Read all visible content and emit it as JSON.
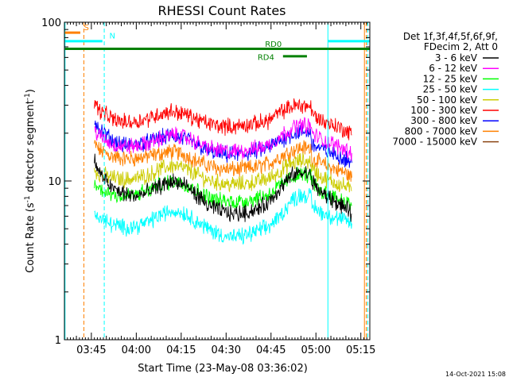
{
  "chart_data": {
    "type": "line",
    "title": "RHESSI Count Rates",
    "xlabel": "Start Time (23-May-08 03:36:02)",
    "ylabel": "Count Rate (s",
    "ylabel_exp1": "-1",
    "ylabel_mid": " detector segment",
    "ylabel_exp2": "-1",
    "ylabel_end": ")",
    "yscale": "log",
    "ylim": [
      1,
      100
    ],
    "xlim_minutes": [
      216,
      318
    ],
    "x_ticks": [
      {
        "label": "03:45",
        "minutes": 225
      },
      {
        "label": "04:00",
        "minutes": 240
      },
      {
        "label": "04:15",
        "minutes": 255
      },
      {
        "label": "04:30",
        "minutes": 270
      },
      {
        "label": "04:45",
        "minutes": 285
      },
      {
        "label": "05:00",
        "minutes": 300
      },
      {
        "label": "05:15",
        "minutes": 315
      }
    ],
    "y_ticks": [
      {
        "label": "1",
        "value": 1
      },
      {
        "label": "10",
        "value": 10
      },
      {
        "label": "100",
        "value": 100
      }
    ],
    "legend_header": [
      "Det 1f,3f,4f,5f,6f,9f,",
      "FDecim 2, Att 0"
    ],
    "legend_position": "right",
    "timestamp": "14-Oct-2021 15:08",
    "knot_minutes": [
      226,
      228,
      232,
      236,
      240,
      244,
      248,
      252,
      256,
      260,
      264,
      268,
      272,
      276,
      280,
      284,
      288,
      292,
      295,
      298.3,
      298.7,
      302,
      306,
      310,
      312
    ],
    "series": [
      {
        "name": "3 - 6 keV",
        "color": "#000000",
        "values": [
          13.5,
          11.0,
          9.0,
          8.3,
          8.0,
          8.5,
          9.3,
          10.0,
          9.5,
          8.2,
          7.0,
          6.5,
          6.2,
          6.3,
          6.6,
          7.3,
          9.0,
          10.8,
          11.3,
          11.0,
          10.0,
          8.3,
          7.5,
          6.7,
          6.2
        ]
      },
      {
        "name": "6 - 12 keV",
        "color": "#ff00ff",
        "values": [
          21.0,
          19.0,
          17.0,
          16.5,
          16.6,
          17.2,
          18.5,
          19.5,
          19.0,
          17.5,
          16.2,
          15.5,
          15.3,
          15.6,
          16.0,
          16.8,
          19.0,
          21.5,
          22.5,
          22.0,
          20.0,
          18.2,
          17.0,
          15.8,
          15.0
        ]
      },
      {
        "name": "12 - 25 keV",
        "color": "#00ff00",
        "values": [
          9.5,
          8.8,
          8.3,
          8.0,
          8.2,
          8.7,
          9.5,
          10.0,
          9.7,
          8.7,
          7.9,
          7.5,
          7.4,
          7.5,
          7.8,
          8.2,
          9.3,
          10.6,
          11.0,
          10.8,
          9.7,
          8.5,
          8.0,
          7.4,
          7.0
        ]
      },
      {
        "name": "25 - 50 keV",
        "color": "#00ffff",
        "values": [
          6.4,
          5.8,
          5.3,
          5.1,
          5.2,
          5.5,
          6.1,
          6.5,
          6.3,
          5.6,
          5.0,
          4.6,
          4.4,
          4.5,
          4.8,
          5.1,
          6.0,
          7.6,
          8.2,
          8.0,
          7.0,
          6.3,
          5.9,
          5.6,
          5.4
        ]
      },
      {
        "name": "50 - 100 keV",
        "color": "#cccc00",
        "values": [
          11.7,
          11.0,
          10.5,
          10.2,
          10.4,
          10.9,
          11.9,
          12.5,
          12.0,
          11.0,
          10.1,
          9.7,
          9.5,
          9.6,
          9.9,
          10.3,
          11.5,
          12.9,
          13.4,
          13.2,
          12.0,
          10.5,
          9.8,
          9.2,
          8.7
        ]
      },
      {
        "name": "100 - 300 keV",
        "color": "#ff0000",
        "values": [
          31.0,
          27.5,
          24.5,
          23.5,
          23.7,
          24.8,
          26.5,
          27.5,
          26.5,
          24.5,
          23.0,
          22.2,
          22.0,
          22.4,
          23.0,
          24.0,
          27.0,
          29.5,
          30.0,
          29.5,
          26.5,
          24.0,
          22.5,
          20.8,
          19.5
        ]
      },
      {
        "name": "300 - 800 keV",
        "color": "#0000ff",
        "values": [
          24.5,
          21.0,
          18.0,
          16.8,
          17.0,
          17.6,
          18.7,
          19.3,
          18.5,
          16.8,
          15.5,
          14.8,
          14.6,
          14.8,
          15.4,
          16.2,
          18.0,
          19.7,
          20.5,
          20.2,
          17.0,
          15.8,
          14.8,
          13.8,
          13.0
        ]
      },
      {
        "name": "800 - 7000 keV",
        "color": "#ff8000",
        "values": [
          17.0,
          15.5,
          14.3,
          13.8,
          13.9,
          14.3,
          14.9,
          15.3,
          14.7,
          13.4,
          12.5,
          12.0,
          11.8,
          11.9,
          12.2,
          12.8,
          14.2,
          15.5,
          16.2,
          16.0,
          13.8,
          12.8,
          12.0,
          11.2,
          10.5
        ]
      },
      {
        "name": "7000 - 15000 keV",
        "color": "#8b4513",
        "values": [],
        "display_range": []
      }
    ],
    "annotations": [
      {
        "label": "S",
        "color": "#ff8000",
        "y": 86,
        "x_from": 216.2,
        "x_to": 221.3,
        "text_x": 222.5,
        "text_y": 89
      },
      {
        "label": "N",
        "color": "#00ffff",
        "y": 76,
        "x_from": 216.2,
        "x_to": 228.7,
        "text_x": 231.0,
        "text_y": 79
      },
      {
        "label": "N",
        "color": "#00ffff",
        "y": 76,
        "x_from": 304.0,
        "x_to": 318.0
      },
      {
        "label": "RD0",
        "color": "#008000",
        "y": 68,
        "x_from": 216.2,
        "x_to": 304.0,
        "text_x": 283.0,
        "text_y": 70
      },
      {
        "label": "RD4",
        "color": "#008000",
        "y": 61,
        "x_from": 289.0,
        "x_to": 297.0,
        "text_x": 280.5,
        "text_y": 58
      },
      {
        "label": "",
        "color": "#008000",
        "y": 68,
        "x_from": 304.0,
        "x_to": 318.0
      }
    ],
    "markers": [
      {
        "minutes": 216.2,
        "color": "#00ffff",
        "style": "solid"
      },
      {
        "minutes": 222.5,
        "color": "#ff8000",
        "style": "dashed"
      },
      {
        "minutes": 229.3,
        "color": "#00ffff",
        "style": "dashed"
      },
      {
        "minutes": 304.0,
        "color": "#00ffff",
        "style": "solid"
      },
      {
        "minutes": 316.2,
        "color": "#ff8000",
        "style": "solid"
      },
      {
        "minutes": 316.8,
        "color": "#ff8000",
        "style": "dashed"
      },
      {
        "minutes": 317.3,
        "color": "#00ffff",
        "style": "dashed"
      }
    ]
  }
}
